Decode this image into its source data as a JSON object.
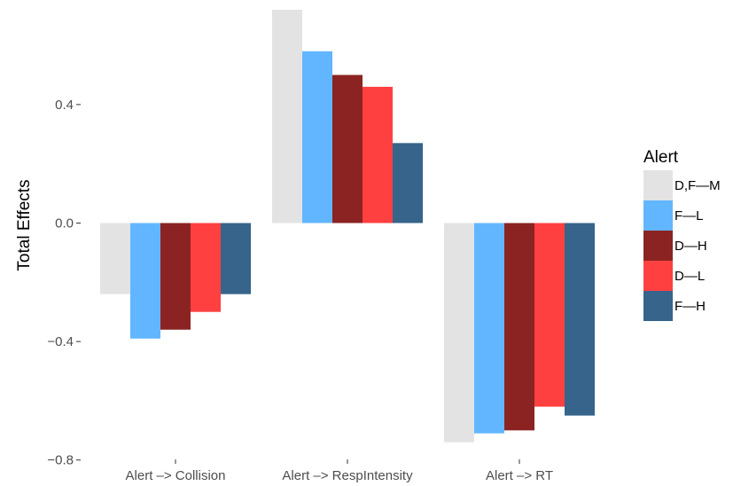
{
  "chart_data": {
    "type": "bar",
    "title": "",
    "xlabel": "",
    "ylabel": "Total Effects",
    "ylim": [
      -0.8,
      0.72
    ],
    "yticks": [
      -0.8,
      -0.4,
      0.0,
      0.4
    ],
    "ytick_labels": [
      "−0.8",
      "−0.4",
      "0.0",
      "0.4"
    ],
    "grid": false,
    "legend": {
      "title": "Alert",
      "position": "right"
    },
    "categories": [
      "Alert –> Collision",
      "Alert –> RespIntensity",
      "Alert –> RT"
    ],
    "series": [
      {
        "name": "D,F—M",
        "color": "#e3e3e3",
        "values": [
          -0.24,
          0.72,
          -0.74
        ]
      },
      {
        "name": "F—L",
        "color": "#62b6ff",
        "values": [
          -0.39,
          0.58,
          -0.71
        ]
      },
      {
        "name": "D—H",
        "color": "#8b2323",
        "values": [
          -0.36,
          0.5,
          -0.7
        ]
      },
      {
        "name": "D—L",
        "color": "#ff4040",
        "values": [
          -0.3,
          0.46,
          -0.62
        ]
      },
      {
        "name": "F—H",
        "color": "#36648b",
        "values": [
          -0.24,
          0.27,
          -0.65
        ]
      }
    ]
  }
}
